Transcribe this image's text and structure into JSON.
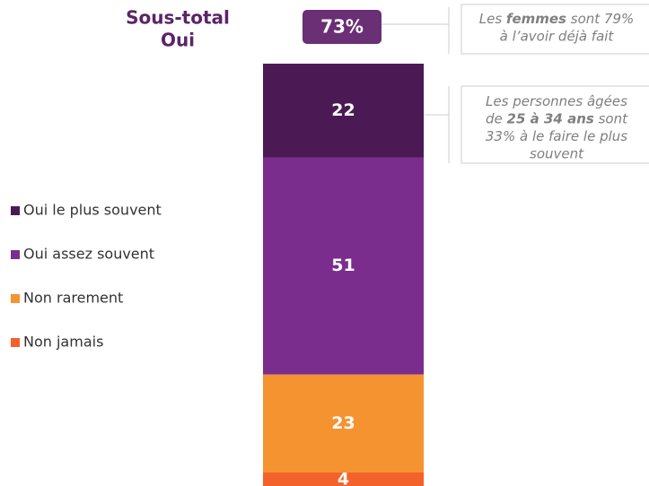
{
  "chart_data": {
    "type": "bar",
    "stacked": true,
    "categories": [
      null
    ],
    "series": [
      {
        "name": "Oui le plus souvent",
        "color": "#4b1a55",
        "values": [
          22
        ]
      },
      {
        "name": "Oui assez souvent",
        "color": "#7b2d8e",
        "values": [
          51
        ]
      },
      {
        "name": "Non rarement",
        "color": "#f59331",
        "values": [
          23
        ]
      },
      {
        "name": "Non jamais",
        "color": "#f4622b",
        "values": [
          4
        ]
      }
    ],
    "subtotal": {
      "label_lines": [
        "Sous-total",
        "Oui"
      ],
      "value": 73,
      "value_label": "73%",
      "color": "#6a2f74"
    },
    "callouts": [
      {
        "lines": [
          [
            {
              "text": "Les "
            },
            {
              "text": "femmes",
              "bold": true
            },
            {
              "text": " sont 79%"
            }
          ],
          [
            {
              "text": "à l’avoir déjà fait"
            }
          ]
        ]
      },
      {
        "lines": [
          [
            {
              "text": "Les personnes âgées"
            }
          ],
          [
            {
              "text": "de "
            },
            {
              "text": "25 à 34 ans",
              "bold": true
            },
            {
              "text": " sont"
            }
          ],
          [
            {
              "text": "33% à le faire le plus"
            }
          ],
          [
            {
              "text": "souvent"
            }
          ]
        ]
      }
    ]
  }
}
